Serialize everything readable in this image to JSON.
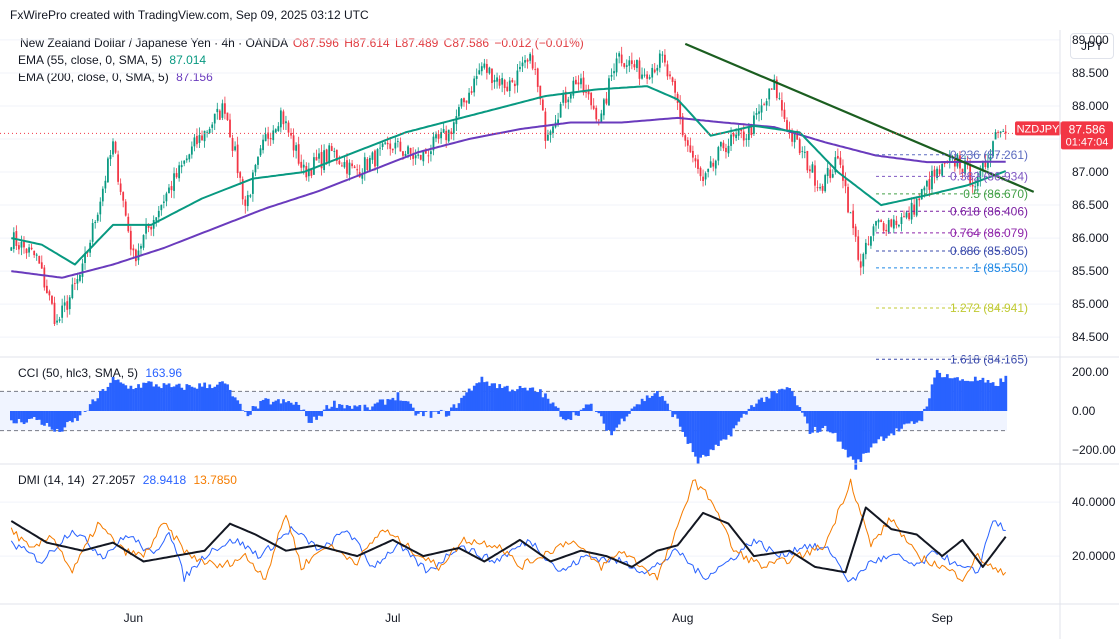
{
  "header": {
    "watermark": "FxWirePro created with TradingView.com, Sep 09, 2025 03:12 UTC"
  },
  "main_legend": {
    "symbol": "New Zealand Dollar / Japanese Yen · 4h · OANDA",
    "open": "O87.596",
    "high": "H87.614",
    "low": "L87.489",
    "close": "C87.586",
    "change": "−0.012 (−0.01%)",
    "ema55_label": "EMA (55, close, 0, SMA, 5)",
    "ema55_value": "87.014",
    "ema200_label": "EMA (200, close, 0, SMA, 5)",
    "ema200_value": "87.156"
  },
  "currency_button": "JPY",
  "price_tag": {
    "symbol": "NZDJPY",
    "price": "87.586",
    "countdown": "01:47:04"
  },
  "cci_legend": {
    "label": "CCI (50, hlc3, SMA, 5)",
    "value": "163.96"
  },
  "dmi_legend": {
    "label": "DMI (14, 14)",
    "adx": "27.2057",
    "plus_di": "28.9418",
    "minus_di": "13.7850"
  },
  "colors": {
    "up": "#089981",
    "down": "#f23645",
    "ema55": "#089981",
    "ema200": "#6a3bbd",
    "trendline": "#1b5e20",
    "cci": "#2962ff",
    "adx": "#131722",
    "plus_di": "#2962ff",
    "minus_di": "#f57c00"
  },
  "chart_data": [
    {
      "type": "candlestick",
      "symbol": "NZDJPY",
      "timeframe": "4h",
      "price_axis": {
        "min": 84.2,
        "max": 89.15,
        "ticks": [
          "89.000",
          "88.500",
          "88.000",
          "87.500",
          "87.000",
          "86.500",
          "86.000",
          "85.500",
          "85.000",
          "84.500"
        ]
      },
      "time_axis": [
        {
          "label": "Jun",
          "index": 48
        },
        {
          "label": "Jul",
          "index": 150
        },
        {
          "label": "Aug",
          "index": 264
        },
        {
          "label": "Sep",
          "index": 366
        }
      ],
      "bar_count": 392,
      "path": [
        [
          0,
          86.0
        ],
        [
          10,
          85.7
        ],
        [
          18,
          84.7
        ],
        [
          28,
          85.5
        ],
        [
          40,
          87.4
        ],
        [
          48,
          85.7
        ],
        [
          60,
          86.6
        ],
        [
          72,
          87.4
        ],
        [
          84,
          88.0
        ],
        [
          92,
          86.5
        ],
        [
          100,
          87.5
        ],
        [
          106,
          87.9
        ],
        [
          115,
          87.0
        ],
        [
          126,
          87.3
        ],
        [
          135,
          87.0
        ],
        [
          150,
          87.4
        ],
        [
          160,
          87.2
        ],
        [
          172,
          87.6
        ],
        [
          185,
          88.6
        ],
        [
          195,
          88.3
        ],
        [
          205,
          88.7
        ],
        [
          210,
          87.6
        ],
        [
          222,
          88.4
        ],
        [
          232,
          87.8
        ],
        [
          238,
          88.8
        ],
        [
          248,
          88.5
        ],
        [
          256,
          88.7
        ],
        [
          262,
          88.0
        ],
        [
          264,
          87.6
        ],
        [
          272,
          86.8
        ],
        [
          280,
          87.4
        ],
        [
          290,
          87.6
        ],
        [
          300,
          88.3
        ],
        [
          306,
          87.6
        ],
        [
          318,
          86.8
        ],
        [
          326,
          87.2
        ],
        [
          330,
          86.3
        ],
        [
          334,
          85.6
        ],
        [
          340,
          86.2
        ],
        [
          352,
          86.3
        ],
        [
          362,
          86.9
        ],
        [
          372,
          87.2
        ],
        [
          380,
          86.8
        ],
        [
          388,
          87.7
        ],
        [
          391,
          87.586
        ]
      ],
      "ema55_path": [
        [
          0,
          86.0
        ],
        [
          12,
          85.9
        ],
        [
          25,
          85.6
        ],
        [
          40,
          86.2
        ],
        [
          55,
          86.2
        ],
        [
          75,
          86.6
        ],
        [
          95,
          86.9
        ],
        [
          115,
          87.0
        ],
        [
          135,
          87.3
        ],
        [
          155,
          87.6
        ],
        [
          175,
          87.8
        ],
        [
          195,
          88.0
        ],
        [
          210,
          88.15
        ],
        [
          230,
          88.25
        ],
        [
          250,
          88.3
        ],
        [
          262,
          88.1
        ],
        [
          275,
          87.55
        ],
        [
          292,
          87.7
        ],
        [
          310,
          87.6
        ],
        [
          325,
          87.0
        ],
        [
          342,
          86.5
        ],
        [
          360,
          86.65
        ],
        [
          376,
          86.8
        ],
        [
          391,
          87.014
        ]
      ],
      "ema200_path": [
        [
          0,
          85.5
        ],
        [
          20,
          85.4
        ],
        [
          40,
          85.6
        ],
        [
          60,
          85.85
        ],
        [
          80,
          86.15
        ],
        [
          100,
          86.45
        ],
        [
          120,
          86.7
        ],
        [
          140,
          87.0
        ],
        [
          160,
          87.3
        ],
        [
          180,
          87.5
        ],
        [
          200,
          87.65
        ],
        [
          220,
          87.75
        ],
        [
          240,
          87.75
        ],
        [
          262,
          87.82
        ],
        [
          280,
          87.75
        ],
        [
          300,
          87.68
        ],
        [
          320,
          87.45
        ],
        [
          340,
          87.25
        ],
        [
          360,
          87.15
        ],
        [
          391,
          87.156
        ]
      ],
      "trendline": [
        [
          265,
          88.94
        ],
        [
          402,
          86.7
        ]
      ],
      "current_price": 87.586,
      "fibonacci": [
        {
          "ratio": "0.236",
          "price": 87.261,
          "label": "0.236 (87.261)"
        },
        {
          "ratio": "0.382",
          "price": 86.934,
          "label": "0.382 (86.934)"
        },
        {
          "ratio": "0.5",
          "price": 86.67,
          "label": "0.5 (86.670)"
        },
        {
          "ratio": "0.618",
          "price": 86.406,
          "label": "0.618 (86.406)"
        },
        {
          "ratio": "0.764",
          "price": 86.079,
          "label": "0.764 (86.079)"
        },
        {
          "ratio": "0.886",
          "price": 85.805,
          "label": "0.886 (85.805)"
        },
        {
          "ratio": "1",
          "price": 85.55,
          "label": "1 (85.550)"
        },
        {
          "ratio": "1.272",
          "price": 84.941,
          "label": "1.272 (84.941)"
        },
        {
          "ratio": "1.618",
          "price": 84.165,
          "label": "1.618 (84.165)"
        }
      ]
    },
    {
      "type": "histogram",
      "name": "CCI (50, hlc3, SMA, 5)",
      "y_axis": {
        "min": -260,
        "max": 260,
        "ticks": [
          "200.00",
          "0.00",
          "−200.00"
        ]
      },
      "bands": [
        100,
        -100
      ],
      "path": [
        [
          0,
          -60
        ],
        [
          10,
          -40
        ],
        [
          18,
          -110
        ],
        [
          26,
          -40
        ],
        [
          32,
          40
        ],
        [
          40,
          160
        ],
        [
          46,
          120
        ],
        [
          54,
          140
        ],
        [
          64,
          120
        ],
        [
          76,
          130
        ],
        [
          84,
          140
        ],
        [
          92,
          -20
        ],
        [
          100,
          50
        ],
        [
          112,
          40
        ],
        [
          118,
          -60
        ],
        [
          126,
          40
        ],
        [
          140,
          10
        ],
        [
          152,
          80
        ],
        [
          160,
          -20
        ],
        [
          172,
          -10
        ],
        [
          184,
          160
        ],
        [
          194,
          120
        ],
        [
          208,
          100
        ],
        [
          218,
          -40
        ],
        [
          228,
          30
        ],
        [
          236,
          -120
        ],
        [
          244,
          20
        ],
        [
          254,
          100
        ],
        [
          262,
          -50
        ],
        [
          270,
          -260
        ],
        [
          280,
          -160
        ],
        [
          292,
          40
        ],
        [
          306,
          120
        ],
        [
          314,
          -100
        ],
        [
          322,
          -90
        ],
        [
          332,
          -280
        ],
        [
          340,
          -150
        ],
        [
          352,
          -80
        ],
        [
          358,
          -40
        ],
        [
          364,
          200
        ],
        [
          372,
          160
        ],
        [
          380,
          160
        ],
        [
          386,
          130
        ],
        [
          391,
          164
        ]
      ]
    },
    {
      "type": "line",
      "name": "DMI (14, 14)",
      "y_axis": {
        "min": 3,
        "max": 53,
        "ticks": [
          "40.0000",
          "20.0000"
        ]
      },
      "series": [
        {
          "name": "ADX",
          "path": [
            [
              0,
              33
            ],
            [
              14,
              25
            ],
            [
              28,
              22
            ],
            [
              40,
              25
            ],
            [
              52,
              18
            ],
            [
              64,
              20
            ],
            [
              76,
              22
            ],
            [
              86,
              32
            ],
            [
              96,
              28
            ],
            [
              108,
              22
            ],
            [
              120,
              24
            ],
            [
              136,
              20
            ],
            [
              150,
              26
            ],
            [
              162,
              20
            ],
            [
              176,
              23
            ],
            [
              186,
              18
            ],
            [
              200,
              26
            ],
            [
              212,
              18
            ],
            [
              224,
              22
            ],
            [
              234,
              20
            ],
            [
              244,
              16
            ],
            [
              254,
              22
            ],
            [
              262,
              24
            ],
            [
              272,
              36
            ],
            [
              282,
              32
            ],
            [
              292,
              20
            ],
            [
              306,
              22
            ],
            [
              316,
              16
            ],
            [
              328,
              14
            ],
            [
              336,
              38
            ],
            [
              346,
              30
            ],
            [
              356,
              28
            ],
            [
              366,
              20
            ],
            [
              374,
              26
            ],
            [
              382,
              16
            ],
            [
              391,
              27.2
            ]
          ]
        },
        {
          "name": "+DI",
          "path": [
            [
              0,
              25
            ],
            [
              12,
              18
            ],
            [
              24,
              30
            ],
            [
              36,
              20
            ],
            [
              46,
              28
            ],
            [
              56,
              20
            ],
            [
              62,
              30
            ],
            [
              68,
              12
            ],
            [
              78,
              22
            ],
            [
              88,
              26
            ],
            [
              98,
              20
            ],
            [
              110,
              30
            ],
            [
              122,
              22
            ],
            [
              132,
              30
            ],
            [
              142,
              16
            ],
            [
              152,
              24
            ],
            [
              164,
              14
            ],
            [
              176,
              24
            ],
            [
              190,
              18
            ],
            [
              204,
              26
            ],
            [
              216,
              14
            ],
            [
              226,
              20
            ],
            [
              240,
              18
            ],
            [
              250,
              14
            ],
            [
              262,
              22
            ],
            [
              272,
              12
            ],
            [
              282,
              18
            ],
            [
              292,
              26
            ],
            [
              302,
              20
            ],
            [
              312,
              24
            ],
            [
              322,
              22
            ],
            [
              330,
              10
            ],
            [
              338,
              18
            ],
            [
              348,
              20
            ],
            [
              356,
              16
            ],
            [
              364,
              22
            ],
            [
              372,
              16
            ],
            [
              380,
              14
            ],
            [
              386,
              34
            ],
            [
              391,
              28.9
            ]
          ]
        },
        {
          "name": "−DI",
          "path": [
            [
              0,
              30
            ],
            [
              8,
              22
            ],
            [
              16,
              28
            ],
            [
              24,
              14
            ],
            [
              34,
              32
            ],
            [
              44,
              22
            ],
            [
              52,
              20
            ],
            [
              60,
              32
            ],
            [
              70,
              20
            ],
            [
              82,
              16
            ],
            [
              92,
              20
            ],
            [
              100,
              12
            ],
            [
              108,
              36
            ],
            [
              114,
              16
            ],
            [
              124,
              24
            ],
            [
              136,
              18
            ],
            [
              146,
              30
            ],
            [
              158,
              22
            ],
            [
              168,
              16
            ],
            [
              178,
              26
            ],
            [
              192,
              24
            ],
            [
              200,
              16
            ],
            [
              212,
              22
            ],
            [
              220,
              26
            ],
            [
              232,
              16
            ],
            [
              240,
              22
            ],
            [
              254,
              12
            ],
            [
              262,
              30
            ],
            [
              268,
              48
            ],
            [
              276,
              40
            ],
            [
              284,
              22
            ],
            [
              296,
              16
            ],
            [
              310,
              20
            ],
            [
              320,
              24
            ],
            [
              330,
              48
            ],
            [
              338,
              24
            ],
            [
              346,
              34
            ],
            [
              356,
              20
            ],
            [
              366,
              16
            ],
            [
              374,
              12
            ],
            [
              380,
              20
            ],
            [
              388,
              14
            ],
            [
              391,
              13.8
            ]
          ]
        }
      ]
    }
  ]
}
